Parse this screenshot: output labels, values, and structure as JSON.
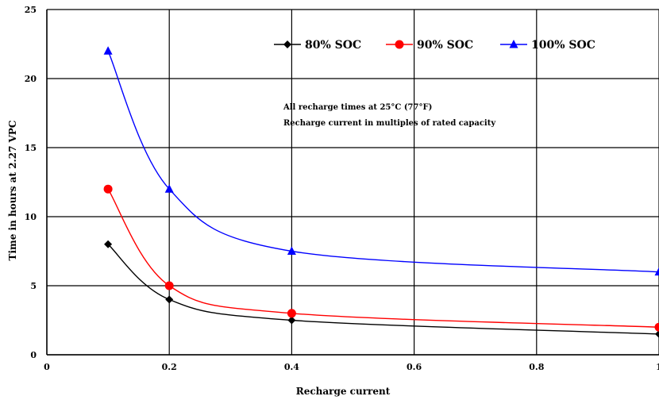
{
  "chart_data": {
    "type": "line",
    "xlabel": "Recharge current",
    "ylabel": "Time in hours at 2.27 VPC",
    "xlim": [
      0,
      1.0
    ],
    "ylim": [
      0,
      25
    ],
    "x_ticks": [
      "0",
      "0.2",
      "0.4",
      "0.6",
      "0.8",
      "1"
    ],
    "y_ticks": [
      "0",
      "5",
      "10",
      "15",
      "20",
      "25"
    ],
    "grid": true,
    "legend_position": "top-right",
    "annotations": [
      "All recharge times at 25°C (77°F)",
      "Recharge current in multiples of rated capacity"
    ],
    "series": [
      {
        "name": "80% SOC",
        "color": "#000000",
        "marker": "diamond",
        "points": [
          [
            0.1,
            8
          ],
          [
            0.2,
            4
          ],
          [
            0.4,
            2.5
          ],
          [
            1.0,
            1.5
          ]
        ]
      },
      {
        "name": "90% SOC",
        "color": "#ff0000",
        "marker": "circle",
        "points": [
          [
            0.1,
            12
          ],
          [
            0.2,
            5
          ],
          [
            0.4,
            3
          ],
          [
            1.0,
            2
          ]
        ]
      },
      {
        "name": "100% SOC",
        "color": "#0000ff",
        "marker": "triangle",
        "points": [
          [
            0.1,
            22
          ],
          [
            0.2,
            12
          ],
          [
            0.4,
            7.5
          ],
          [
            1.0,
            6
          ]
        ]
      }
    ]
  }
}
